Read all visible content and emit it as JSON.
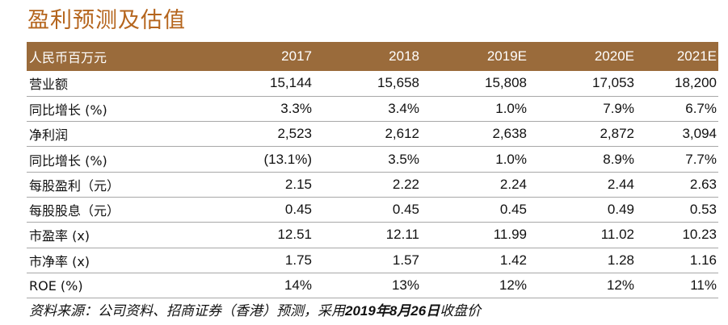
{
  "title": "盈利预测及估值",
  "table": {
    "header": [
      "人民币百万元",
      "2017",
      "2018",
      "2019E",
      "2020E",
      "2021E"
    ],
    "rows": [
      [
        "营业额",
        "15,144",
        "15,658",
        "15,808",
        "17,053",
        "18,200"
      ],
      [
        "同比增长 (%)",
        "3.3%",
        "3.4%",
        "1.0%",
        "7.9%",
        "6.7%"
      ],
      [
        "净利润",
        "2,523",
        "2,612",
        "2,638",
        "2,872",
        "3,094"
      ],
      [
        "同比增长 (%)",
        "(13.1%)",
        "3.5%",
        "1.0%",
        "8.9%",
        "7.7%"
      ],
      [
        "每股盈利（元）",
        "2.15",
        "2.22",
        "2.24",
        "2.44",
        "2.63"
      ],
      [
        "每股股息（元）",
        "0.45",
        "0.45",
        "0.45",
        "0.49",
        "0.53"
      ],
      [
        "市盈率 (x)",
        "12.51",
        "12.11",
        "11.99",
        "11.02",
        "10.23"
      ],
      [
        "市净率 (x)",
        "1.75",
        "1.57",
        "1.42",
        "1.28",
        "1.16"
      ],
      [
        "ROE (%)",
        "14%",
        "13%",
        "12%",
        "12%",
        "11%"
      ]
    ]
  },
  "source_note": {
    "prefix": "资料来源：公司资料、招商证券（香港）预测，采用",
    "date": "2019年8月26日",
    "suffix": "收盘价"
  },
  "colors": {
    "title": "#b5651d",
    "header_bg": "#9a6b3b",
    "header_text": "#ffffff",
    "row_divider": "#a8a8a8"
  }
}
